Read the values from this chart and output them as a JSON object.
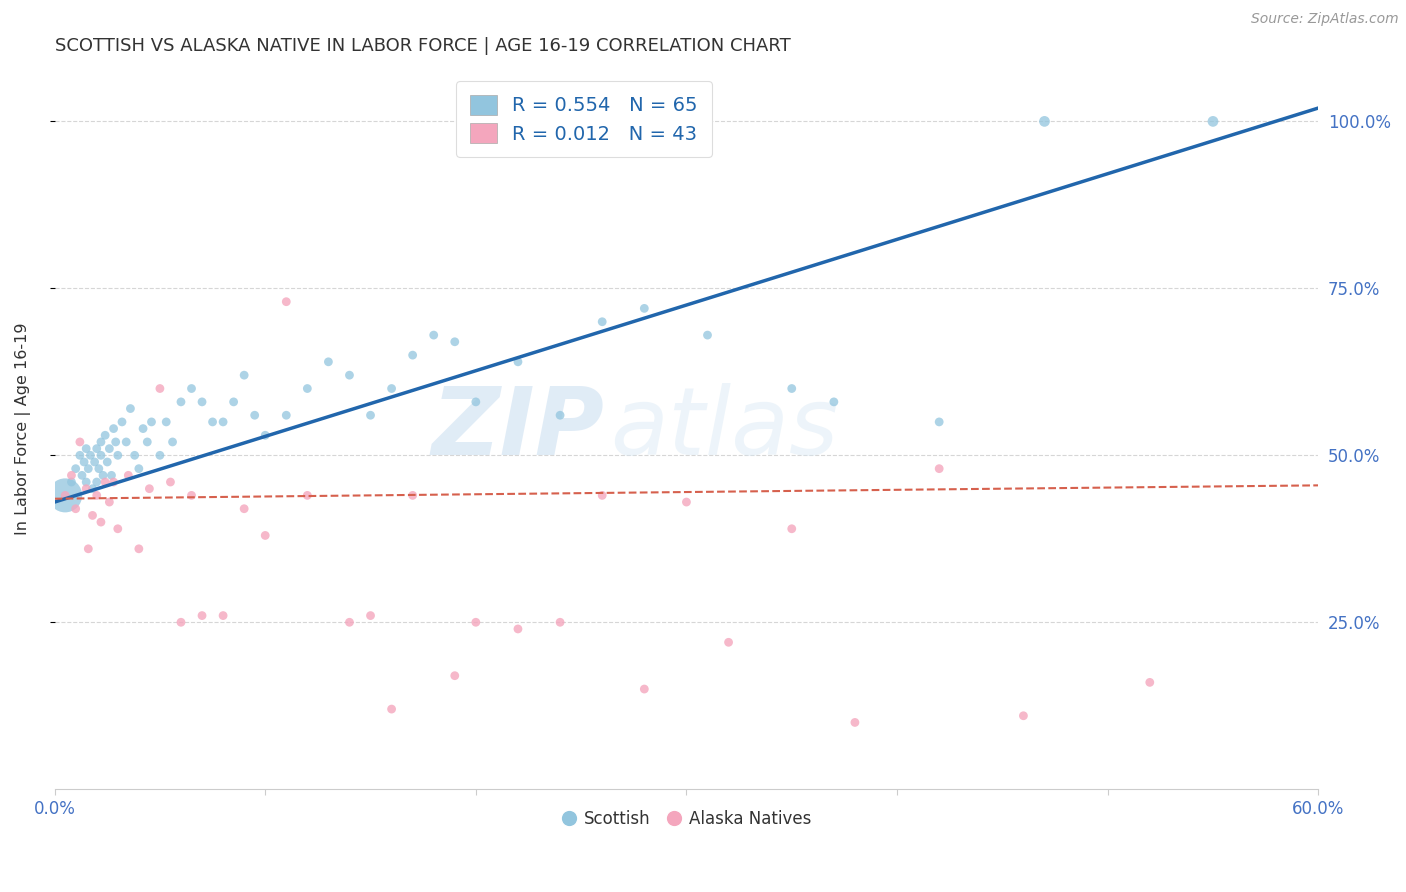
{
  "title": "SCOTTISH VS ALASKA NATIVE IN LABOR FORCE | AGE 16-19 CORRELATION CHART",
  "source": "Source: ZipAtlas.com",
  "ylabel": "In Labor Force | Age 16-19",
  "xlim": [
    0.0,
    0.6
  ],
  "ylim": [
    0.0,
    1.08
  ],
  "xtick_positions": [
    0.0,
    0.1,
    0.2,
    0.3,
    0.4,
    0.5,
    0.6
  ],
  "xtick_labels": [
    "0.0%",
    "",
    "",
    "",
    "",
    "",
    "60.0%"
  ],
  "ytick_vals_right": [
    0.25,
    0.5,
    0.75,
    1.0
  ],
  "ytick_labels_right": [
    "25.0%",
    "50.0%",
    "75.0%",
    "100.0%"
  ],
  "blue_color": "#92c5de",
  "pink_color": "#f4a6bd",
  "blue_line_color": "#2166ac",
  "pink_line_color": "#d6604d",
  "legend_text_blue": "R = 0.554   N = 65",
  "legend_text_pink": "R = 0.012   N = 43",
  "watermark_zip": "ZIP",
  "watermark_atlas": "atlas",
  "title_color": "#333333",
  "axis_color": "#4472c4",
  "grid_color": "#cccccc",
  "background_color": "#ffffff",
  "blue_trend_x": [
    0.0,
    0.6
  ],
  "blue_trend_y": [
    0.43,
    1.02
  ],
  "pink_trend_x": [
    0.0,
    0.6
  ],
  "pink_trend_y": [
    0.435,
    0.455
  ],
  "blue_scatter_x": [
    0.005,
    0.008,
    0.01,
    0.012,
    0.013,
    0.014,
    0.015,
    0.015,
    0.016,
    0.017,
    0.018,
    0.019,
    0.02,
    0.02,
    0.021,
    0.022,
    0.022,
    0.023,
    0.024,
    0.025,
    0.026,
    0.027,
    0.028,
    0.029,
    0.03,
    0.032,
    0.034,
    0.036,
    0.038,
    0.04,
    0.042,
    0.044,
    0.046,
    0.05,
    0.053,
    0.056,
    0.06,
    0.065,
    0.07,
    0.075,
    0.08,
    0.085,
    0.09,
    0.095,
    0.1,
    0.11,
    0.12,
    0.13,
    0.14,
    0.15,
    0.16,
    0.17,
    0.18,
    0.19,
    0.2,
    0.22,
    0.24,
    0.26,
    0.28,
    0.31,
    0.35,
    0.37,
    0.42,
    0.47,
    0.55
  ],
  "blue_scatter_y": [
    0.44,
    0.46,
    0.48,
    0.5,
    0.47,
    0.49,
    0.51,
    0.46,
    0.48,
    0.5,
    0.45,
    0.49,
    0.46,
    0.51,
    0.48,
    0.5,
    0.52,
    0.47,
    0.53,
    0.49,
    0.51,
    0.47,
    0.54,
    0.52,
    0.5,
    0.55,
    0.52,
    0.57,
    0.5,
    0.48,
    0.54,
    0.52,
    0.55,
    0.5,
    0.55,
    0.52,
    0.58,
    0.6,
    0.58,
    0.55,
    0.55,
    0.58,
    0.62,
    0.56,
    0.53,
    0.56,
    0.6,
    0.64,
    0.62,
    0.56,
    0.6,
    0.65,
    0.68,
    0.67,
    0.58,
    0.64,
    0.56,
    0.7,
    0.72,
    0.68,
    0.6,
    0.58,
    0.55,
    1.0,
    1.0
  ],
  "blue_scatter_size": [
    600,
    40,
    40,
    40,
    40,
    40,
    40,
    40,
    40,
    40,
    40,
    40,
    40,
    40,
    40,
    40,
    40,
    40,
    40,
    40,
    40,
    40,
    40,
    40,
    40,
    40,
    40,
    40,
    40,
    40,
    40,
    40,
    40,
    40,
    40,
    40,
    40,
    40,
    40,
    40,
    40,
    40,
    40,
    40,
    40,
    40,
    40,
    40,
    40,
    40,
    40,
    40,
    40,
    40,
    40,
    40,
    40,
    40,
    40,
    40,
    40,
    40,
    40,
    60,
    60
  ],
  "pink_scatter_x": [
    0.005,
    0.008,
    0.01,
    0.012,
    0.015,
    0.016,
    0.018,
    0.02,
    0.022,
    0.024,
    0.026,
    0.028,
    0.03,
    0.035,
    0.04,
    0.045,
    0.05,
    0.055,
    0.06,
    0.065,
    0.07,
    0.08,
    0.09,
    0.1,
    0.11,
    0.12,
    0.14,
    0.15,
    0.16,
    0.17,
    0.19,
    0.2,
    0.22,
    0.24,
    0.26,
    0.28,
    0.3,
    0.32,
    0.35,
    0.38,
    0.42,
    0.46,
    0.52
  ],
  "pink_scatter_y": [
    0.44,
    0.47,
    0.42,
    0.52,
    0.45,
    0.36,
    0.41,
    0.44,
    0.4,
    0.46,
    0.43,
    0.46,
    0.39,
    0.47,
    0.36,
    0.45,
    0.6,
    0.46,
    0.25,
    0.44,
    0.26,
    0.26,
    0.42,
    0.38,
    0.73,
    0.44,
    0.25,
    0.26,
    0.12,
    0.44,
    0.17,
    0.25,
    0.24,
    0.25,
    0.44,
    0.15,
    0.43,
    0.22,
    0.39,
    0.1,
    0.48,
    0.11,
    0.16
  ],
  "pink_scatter_size": [
    40,
    40,
    40,
    40,
    40,
    40,
    40,
    40,
    40,
    40,
    40,
    40,
    40,
    40,
    40,
    40,
    40,
    40,
    40,
    40,
    40,
    40,
    40,
    40,
    40,
    40,
    40,
    40,
    40,
    40,
    40,
    40,
    40,
    40,
    40,
    40,
    40,
    40,
    40,
    40,
    40,
    40,
    40
  ]
}
